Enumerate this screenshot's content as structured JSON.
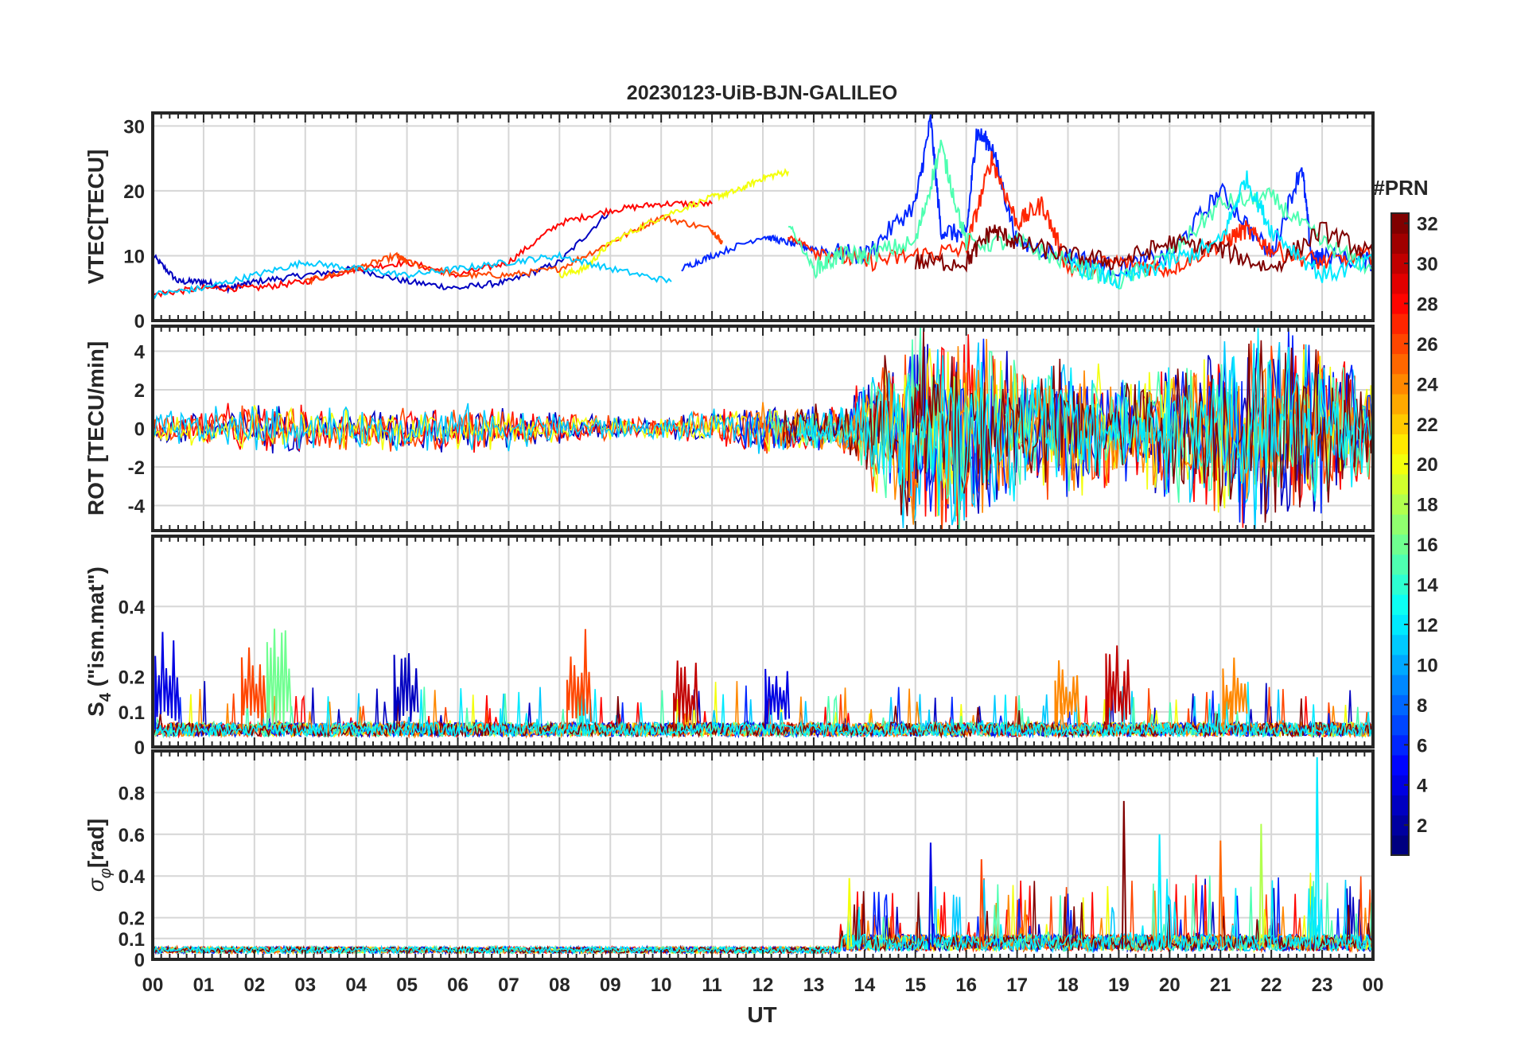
{
  "figure": {
    "title": "20230123-UiB-BJN-GALILEO",
    "xlabel": "UT",
    "x_ticks": [
      "00",
      "01",
      "02",
      "03",
      "04",
      "05",
      "06",
      "07",
      "08",
      "09",
      "10",
      "11",
      "12",
      "13",
      "14",
      "15",
      "16",
      "17",
      "18",
      "19",
      "20",
      "21",
      "22",
      "23",
      "00"
    ],
    "colorbar": {
      "title": "#PRN",
      "range": [
        1,
        32
      ],
      "colormap": "jet",
      "tick_labels": [
        "2",
        "4",
        "6",
        "8",
        "10",
        "12",
        "14",
        "16",
        "18",
        "20",
        "22",
        "24",
        "26",
        "28",
        "30",
        "32"
      ]
    }
  },
  "chart_data": [
    {
      "type": "line",
      "panel": "vtec",
      "ylabel": "VTEC[TECU]",
      "ylim": [
        0,
        32
      ],
      "y_ticks": [
        "0",
        "10",
        "20",
        "30"
      ],
      "x_unit": "UT hours",
      "xlim": [
        0,
        24
      ],
      "grid": true,
      "series": [
        {
          "prn": 3,
          "x": [
            0,
            0.5,
            1,
            1.5,
            2,
            3,
            4,
            5,
            6,
            7,
            8,
            9
          ],
          "y": [
            10,
            6,
            6,
            5,
            6,
            7,
            8,
            6,
            5,
            6,
            9,
            17
          ]
        },
        {
          "prn": 28,
          "x": [
            0,
            1,
            2,
            3,
            4,
            5,
            6,
            7,
            8,
            9,
            10,
            11
          ],
          "y": [
            4,
            5,
            5,
            6,
            8,
            9,
            7,
            9,
            15,
            17,
            18,
            18
          ]
        },
        {
          "prn": 26,
          "x": [
            3,
            4,
            4.8,
            5,
            6,
            7,
            8,
            9,
            10,
            11,
            11.2
          ],
          "y": [
            6,
            8,
            10,
            9,
            7,
            7,
            8,
            12,
            16,
            14,
            12
          ]
        },
        {
          "prn": 20,
          "x": [
            8,
            8.5,
            9,
            10,
            11,
            11.5,
            12,
            12.5
          ],
          "y": [
            7,
            8,
            12,
            16,
            19,
            20,
            22,
            23
          ]
        },
        {
          "prn": 11,
          "x": [
            0,
            1,
            2,
            3,
            4,
            5,
            6,
            7,
            8,
            9,
            10.2
          ],
          "y": [
            4,
            5,
            7,
            9,
            8,
            7,
            8,
            9,
            10,
            8,
            6
          ]
        },
        {
          "prn": 6,
          "x": [
            10.4,
            11,
            12,
            12.5,
            13,
            14,
            15,
            15.3,
            15.5,
            16,
            16.2,
            16.5,
            17,
            18,
            19,
            20,
            21,
            22,
            22.6,
            22.8,
            23,
            24
          ],
          "y": [
            8,
            10,
            13,
            12,
            11,
            10,
            18,
            31,
            14,
            13,
            29,
            27,
            12,
            10,
            8,
            10,
            20,
            10,
            24,
            9,
            10,
            9
          ]
        },
        {
          "prn": 27,
          "x": [
            12.5,
            13,
            14,
            15,
            16,
            16.5,
            17,
            17.5,
            18,
            19,
            20,
            21,
            21.5,
            22,
            23,
            24
          ],
          "y": [
            13,
            11,
            9,
            10,
            11,
            25,
            15,
            18,
            8,
            9,
            8,
            12,
            14,
            11,
            9,
            10
          ]
        },
        {
          "prn": 15,
          "x": [
            12.5,
            13,
            13.5,
            14,
            15,
            15.5,
            16,
            17,
            18,
            19,
            20,
            21,
            22,
            23,
            24
          ],
          "y": [
            15,
            8,
            10,
            10,
            12,
            27,
            12,
            12,
            9,
            6,
            10,
            18,
            19,
            12,
            8
          ]
        },
        {
          "prn": 32,
          "x": [
            15,
            16,
            16.5,
            17,
            18,
            19,
            20,
            21,
            22,
            23,
            24
          ],
          "y": [
            9,
            9,
            14,
            12,
            10,
            9,
            12,
            11,
            8,
            14,
            10
          ]
        },
        {
          "prn": 12,
          "x": [
            18,
            19,
            20,
            21,
            21.5,
            22,
            23,
            24
          ],
          "y": [
            9,
            6,
            9,
            12,
            22,
            14,
            7,
            9
          ]
        }
      ]
    },
    {
      "type": "line",
      "panel": "rot",
      "ylabel": "ROT [TECU/min]",
      "ylim": [
        -5.3,
        5.3
      ],
      "y_ticks": [
        "-4",
        "-2",
        "0",
        "2",
        "4"
      ],
      "xlim": [
        0,
        24
      ],
      "grid": true,
      "series_note": "noisy traces from all PRNs",
      "envelope": {
        "x": [
          0,
          2,
          4,
          6,
          8,
          10,
          12,
          13.5,
          14,
          15,
          16,
          17,
          18,
          19,
          20,
          21,
          22,
          23,
          24
        ],
        "amplitude": [
          1,
          1.5,
          1.2,
          1.5,
          1,
          0.6,
          1.5,
          1.2,
          3,
          6,
          6,
          4,
          4,
          3,
          4,
          5,
          6,
          5,
          3
        ]
      }
    },
    {
      "type": "line",
      "panel": "s4",
      "ylabel": "S_4 (\"ism.mat\")",
      "ylim": [
        0,
        0.6
      ],
      "y_ticks": [
        "0",
        "0.1",
        "0.2",
        "0.4"
      ],
      "xlim": [
        0,
        24
      ],
      "grid": true,
      "peaks": [
        {
          "x": 0.3,
          "y": 0.34,
          "prn": 4
        },
        {
          "x": 2.5,
          "y": 0.37,
          "prn": 16
        },
        {
          "x": 2.0,
          "y": 0.3,
          "prn": 26
        },
        {
          "x": 5.0,
          "y": 0.27,
          "prn": 3
        },
        {
          "x": 8.4,
          "y": 0.35,
          "prn": 26
        },
        {
          "x": 10.5,
          "y": 0.25,
          "prn": 30
        },
        {
          "x": 12.3,
          "y": 0.24,
          "prn": 4
        },
        {
          "x": 18.0,
          "y": 0.28,
          "prn": 24
        },
        {
          "x": 19.0,
          "y": 0.3,
          "prn": 30
        },
        {
          "x": 21.3,
          "y": 0.26,
          "prn": 24
        }
      ]
    },
    {
      "type": "line",
      "panel": "sigma_phi",
      "ylabel": "σ_φ[rad]",
      "ylim": [
        0,
        1.0
      ],
      "y_ticks": [
        "0",
        "0.1",
        "0.2",
        "0.4",
        "0.6",
        "0.8"
      ],
      "xlim": [
        0,
        24
      ],
      "grid": true,
      "peaks": [
        {
          "x": 13.7,
          "y": 0.39,
          "prn": 20
        },
        {
          "x": 15.3,
          "y": 0.56,
          "prn": 4
        },
        {
          "x": 16.3,
          "y": 0.48,
          "prn": 26
        },
        {
          "x": 19.1,
          "y": 0.76,
          "prn": 32
        },
        {
          "x": 19.8,
          "y": 0.6,
          "prn": 12
        },
        {
          "x": 21.0,
          "y": 0.57,
          "prn": 25
        },
        {
          "x": 21.8,
          "y": 0.65,
          "prn": 18
        },
        {
          "x": 22.9,
          "y": 0.97,
          "prn": 12
        }
      ]
    }
  ]
}
